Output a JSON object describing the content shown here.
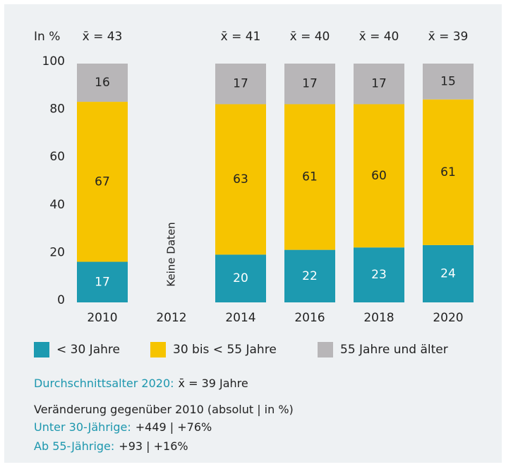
{
  "chart_data": {
    "type": "stacked_bar",
    "y_unit_label": "In %",
    "categories": [
      "2010",
      "2012",
      "2014",
      "2016",
      "2018",
      "2020"
    ],
    "mean_labels": [
      "x̄ = 43",
      null,
      "x̄ = 41",
      "x̄ = 40",
      "x̄ = 40",
      "x̄ = 39"
    ],
    "series": [
      {
        "name": "< 30 Jahre",
        "color": "#1d9ab0",
        "values": [
          17,
          null,
          20,
          22,
          23,
          24
        ]
      },
      {
        "name": "30 bis < 55 Jahre",
        "color": "#f6c400",
        "values": [
          67,
          null,
          63,
          61,
          60,
          61
        ]
      },
      {
        "name": "55 Jahre und älter",
        "color": "#b8b6b8",
        "values": [
          16,
          null,
          17,
          17,
          17,
          15
        ]
      }
    ],
    "annotation": "Keine Daten",
    "ylim": [
      0,
      100
    ],
    "yticks": [
      0,
      20,
      40,
      60,
      80,
      100
    ],
    "grid": false,
    "legend": "bottom",
    "notes": [
      {
        "label": "Durchschnittsalter 2020:",
        "value": "x̄ = 39 Jahre"
      },
      {
        "label": "Veränderung gegenüber 2010 (absolut | in %)",
        "value": null
      },
      {
        "label": "Unter 30-Jährige:",
        "value": "+449 | +76%"
      },
      {
        "label": "Ab 55-Jährige:",
        "value": "+93 | +16%"
      }
    ]
  }
}
